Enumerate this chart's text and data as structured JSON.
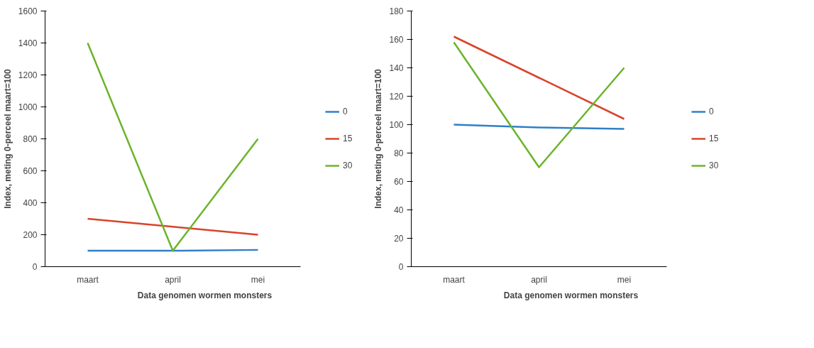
{
  "chart_data": [
    {
      "type": "line",
      "categories": [
        "maart",
        "april",
        "mei"
      ],
      "xlabel": "Data genomen wormen monsters",
      "ylabel": "Index, meting 0-perceel maart=100",
      "ylim": [
        0,
        1600
      ],
      "yticks": [
        0,
        200,
        400,
        600,
        800,
        1000,
        1200,
        1400,
        1600
      ],
      "grid": false,
      "legend": "right",
      "series": [
        {
          "name": "0",
          "color": "#2f7fc8",
          "values": [
            100,
            100,
            105
          ]
        },
        {
          "name": "15",
          "color": "#d9442b",
          "values": [
            300,
            250,
            200
          ]
        },
        {
          "name": "30",
          "color": "#6bb42c",
          "values": [
            1400,
            100,
            800
          ]
        }
      ]
    },
    {
      "type": "line",
      "categories": [
        "maart",
        "april",
        "mei"
      ],
      "xlabel": "Data genomen wormen monsters",
      "ylabel": "Index, meting 0-perceel maart=100",
      "ylim": [
        0,
        180
      ],
      "yticks": [
        0,
        20,
        40,
        60,
        80,
        100,
        120,
        140,
        160,
        180
      ],
      "grid": false,
      "legend": "right",
      "series": [
        {
          "name": "0",
          "color": "#2f7fc8",
          "values": [
            100,
            98,
            97
          ]
        },
        {
          "name": "15",
          "color": "#d9442b",
          "values": [
            162,
            133,
            104
          ]
        },
        {
          "name": "30",
          "color": "#6bb42c",
          "values": [
            158,
            70,
            140
          ]
        }
      ]
    }
  ]
}
